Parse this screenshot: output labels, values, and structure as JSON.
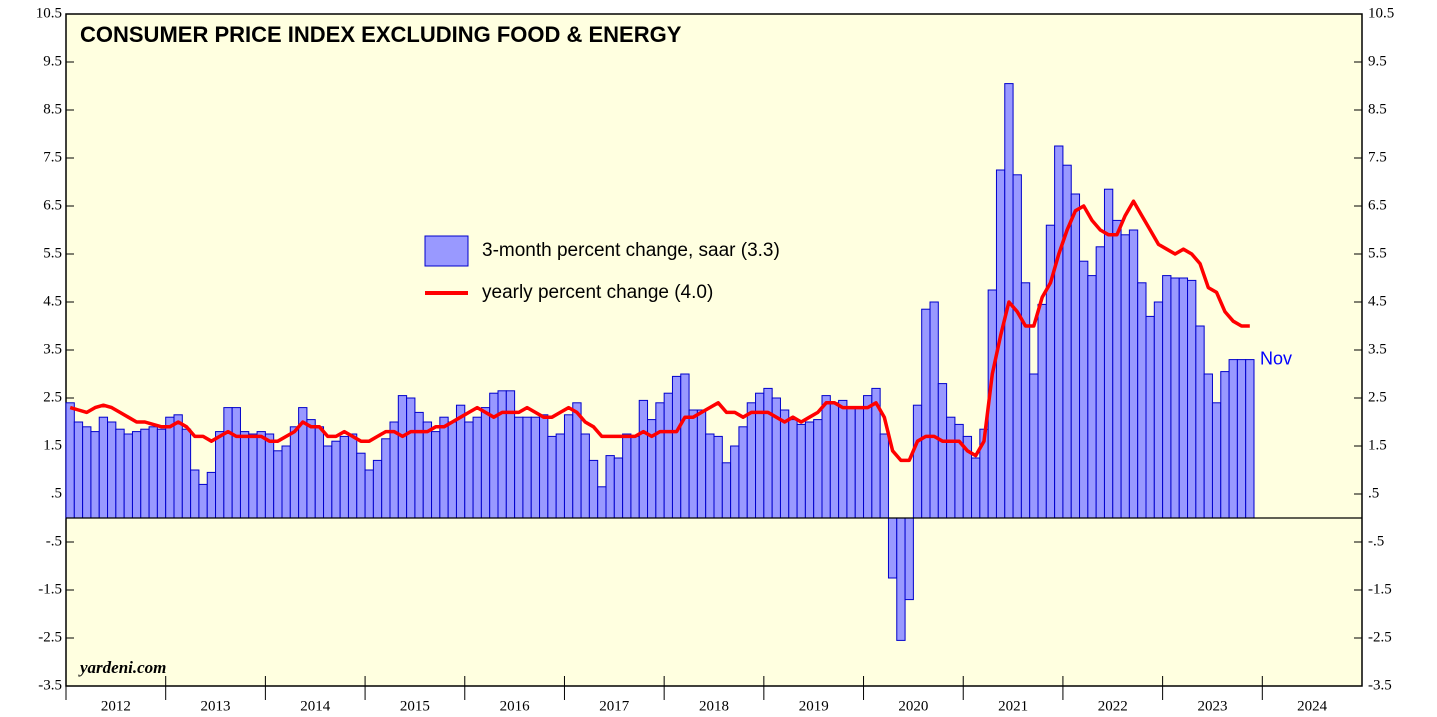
{
  "chart_data": {
    "type": "bar-line",
    "title": "CONSUMER PRICE INDEX EXCLUDING FOOD & ENERGY",
    "source": "yardeni.com",
    "annotation": "Nov",
    "year_labels": [
      "2012",
      "2013",
      "2014",
      "2015",
      "2016",
      "2017",
      "2018",
      "2019",
      "2020",
      "2021",
      "2022",
      "2023",
      "2024"
    ],
    "ylim": [
      -3.5,
      10.5
    ],
    "yticks": [
      10.5,
      9.5,
      8.5,
      7.5,
      6.5,
      5.5,
      4.5,
      3.5,
      2.5,
      1.5,
      {
        "value": 0.5,
        "label": ".5"
      },
      {
        "value": -0.5,
        "label": "-.5"
      },
      -1.5,
      -2.5,
      -3.5
    ],
    "background": "#ffffe0",
    "series": [
      {
        "name": "3-month percent change, saar (3.3)",
        "type": "bar",
        "color": "#9999ff",
        "edge": "#0000cc",
        "values": [
          2.4,
          2.0,
          1.9,
          1.8,
          2.1,
          2.0,
          1.85,
          1.75,
          1.8,
          1.85,
          1.9,
          1.85,
          2.1,
          2.15,
          1.85,
          1.0,
          0.7,
          0.95,
          1.8,
          2.3,
          2.3,
          1.8,
          1.75,
          1.8,
          1.75,
          1.4,
          1.5,
          1.9,
          2.3,
          2.05,
          1.9,
          1.5,
          1.6,
          1.7,
          1.75,
          1.35,
          1.0,
          1.2,
          1.65,
          2.0,
          2.55,
          2.5,
          2.2,
          2.0,
          1.8,
          2.1,
          2.0,
          2.35,
          2.0,
          2.1,
          2.3,
          2.6,
          2.65,
          2.65,
          2.1,
          2.1,
          2.1,
          2.15,
          1.7,
          1.75,
          2.15,
          2.4,
          1.75,
          1.2,
          0.65,
          1.3,
          1.25,
          1.75,
          1.7,
          2.45,
          2.05,
          2.4,
          2.6,
          2.95,
          3.0,
          2.25,
          2.25,
          1.75,
          1.7,
          1.15,
          1.5,
          1.9,
          2.4,
          2.6,
          2.7,
          2.5,
          2.25,
          2.05,
          1.95,
          2.0,
          2.05,
          2.55,
          2.4,
          2.45,
          2.3,
          2.3,
          2.55,
          2.7,
          1.75,
          -1.25,
          -2.55,
          -1.7,
          2.35,
          4.35,
          4.5,
          2.8,
          2.1,
          1.95,
          1.7,
          1.25,
          1.85,
          4.75,
          7.25,
          9.05,
          7.15,
          4.9,
          3.0,
          4.45,
          6.1,
          7.75,
          7.35,
          6.75,
          5.35,
          5.05,
          5.65,
          6.85,
          6.2,
          5.9,
          6.0,
          4.9,
          4.2,
          4.5,
          5.05,
          5.0,
          5.0,
          4.95,
          4.0,
          3.0,
          2.4,
          3.05,
          3.3,
          3.3,
          3.3
        ]
      },
      {
        "name": "yearly percent change (4.0)",
        "type": "line",
        "color": "#ff0000",
        "values": [
          2.3,
          2.25,
          2.2,
          2.3,
          2.35,
          2.3,
          2.2,
          2.1,
          2.0,
          2.0,
          1.95,
          1.9,
          1.9,
          2.0,
          1.9,
          1.7,
          1.7,
          1.6,
          1.7,
          1.8,
          1.7,
          1.7,
          1.7,
          1.7,
          1.6,
          1.6,
          1.7,
          1.8,
          2.0,
          1.9,
          1.9,
          1.7,
          1.7,
          1.8,
          1.7,
          1.6,
          1.6,
          1.7,
          1.8,
          1.8,
          1.7,
          1.8,
          1.8,
          1.8,
          1.9,
          1.9,
          2.0,
          2.1,
          2.2,
          2.3,
          2.2,
          2.1,
          2.2,
          2.2,
          2.2,
          2.3,
          2.2,
          2.1,
          2.1,
          2.2,
          2.3,
          2.2,
          2.0,
          1.9,
          1.7,
          1.7,
          1.7,
          1.7,
          1.7,
          1.8,
          1.7,
          1.8,
          1.8,
          1.8,
          2.1,
          2.1,
          2.2,
          2.3,
          2.4,
          2.2,
          2.2,
          2.1,
          2.2,
          2.2,
          2.2,
          2.1,
          2.0,
          2.1,
          2.0,
          2.1,
          2.2,
          2.4,
          2.4,
          2.3,
          2.3,
          2.3,
          2.3,
          2.4,
          2.1,
          1.4,
          1.2,
          1.2,
          1.6,
          1.7,
          1.7,
          1.6,
          1.6,
          1.6,
          1.4,
          1.3,
          1.6,
          3.0,
          3.8,
          4.5,
          4.3,
          4.0,
          4.0,
          4.6,
          4.9,
          5.5,
          6.0,
          6.4,
          6.5,
          6.2,
          6.0,
          5.9,
          5.9,
          6.3,
          6.6,
          6.3,
          6.0,
          5.7,
          5.6,
          5.5,
          5.6,
          5.5,
          5.3,
          4.8,
          4.7,
          4.3,
          4.1,
          4.0,
          4.0
        ]
      }
    ]
  }
}
